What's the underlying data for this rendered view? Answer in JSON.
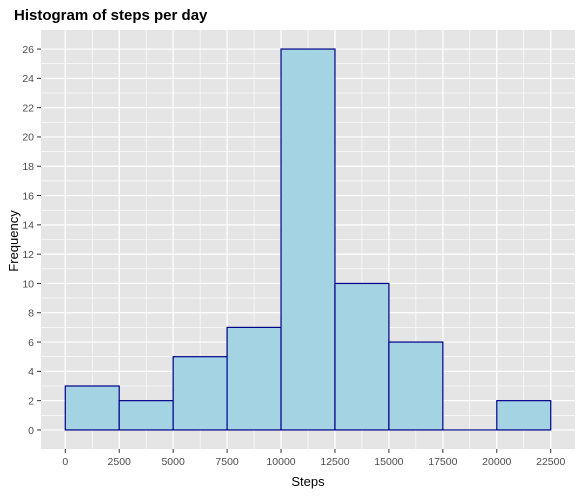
{
  "chart_data": {
    "type": "bar",
    "subtype": "histogram",
    "title": "Histogram of steps per day",
    "xlabel": "Steps",
    "ylabel": "Frequency",
    "bin_width": 2500,
    "bins": [
      {
        "start": 0,
        "end": 2500,
        "count": 3
      },
      {
        "start": 2500,
        "end": 5000,
        "count": 2
      },
      {
        "start": 5000,
        "end": 7500,
        "count": 5
      },
      {
        "start": 7500,
        "end": 10000,
        "count": 7
      },
      {
        "start": 10000,
        "end": 12500,
        "count": 26
      },
      {
        "start": 12500,
        "end": 15000,
        "count": 10
      },
      {
        "start": 15000,
        "end": 17500,
        "count": 6
      },
      {
        "start": 17500,
        "end": 20000,
        "count": 0
      },
      {
        "start": 20000,
        "end": 22500,
        "count": 2
      }
    ],
    "xlim": [
      -1125,
      23625
    ],
    "ylim": [
      -1.3,
      27.3
    ],
    "x_ticks": [
      0,
      2500,
      5000,
      7500,
      10000,
      12500,
      15000,
      17500,
      20000,
      22500
    ],
    "x_tick_labels": [
      "0",
      "2500",
      "5000",
      "7500",
      "10000",
      "12500",
      "15000",
      "17500",
      "20000",
      "22500"
    ],
    "y_ticks": [
      0,
      2,
      4,
      6,
      8,
      10,
      12,
      14,
      16,
      18,
      20,
      22,
      24,
      26
    ],
    "y_tick_labels": [
      "0",
      "2",
      "4",
      "6",
      "8",
      "10",
      "12",
      "14",
      "16",
      "18",
      "20",
      "22",
      "24",
      "26"
    ],
    "grid": true,
    "colors": {
      "panel_background": "#e5e5e5",
      "grid_line": "#ffffff",
      "bar_fill": "#a4d3e3",
      "bar_outline": "#00008b"
    }
  }
}
